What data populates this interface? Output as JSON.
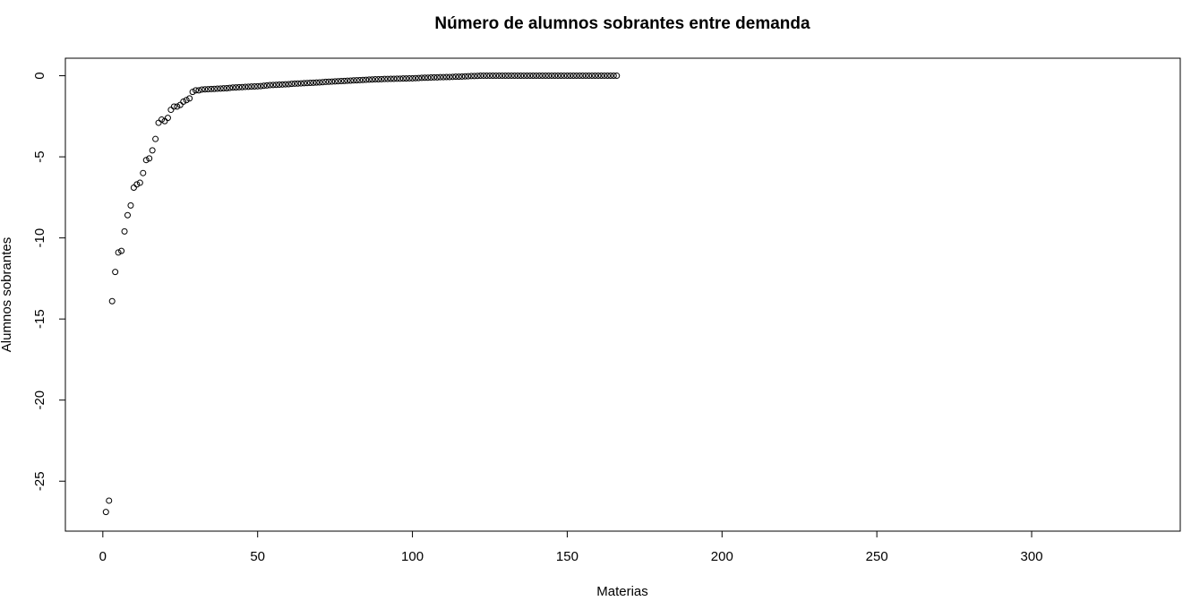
{
  "chart_data": {
    "type": "scatter",
    "title": "Número de alumnos sobrantes entre demanda",
    "x_label": "Materias",
    "y_label": "Alumnos sobrantes",
    "x": [
      1,
      2,
      3,
      4,
      5,
      6,
      7,
      8,
      9,
      10,
      11,
      12,
      13,
      14,
      15,
      16,
      17,
      18,
      19,
      20,
      21,
      22,
      23,
      24,
      25,
      26,
      27,
      28,
      29,
      30,
      31,
      32,
      33,
      34,
      35,
      36,
      37,
      38,
      39,
      40,
      41,
      42,
      43,
      44,
      45,
      46,
      47,
      48,
      49,
      50,
      51,
      52,
      53,
      54,
      55,
      56,
      57,
      58,
      59,
      60,
      61,
      62,
      63,
      64,
      65,
      66,
      67,
      68,
      69,
      70,
      71,
      72,
      73,
      74,
      75,
      76,
      77,
      78,
      79,
      80,
      81,
      82,
      83,
      84,
      85,
      86,
      87,
      88,
      89,
      90,
      91,
      92,
      93,
      94,
      95,
      96,
      97,
      98,
      99,
      100,
      101,
      102,
      103,
      104,
      105,
      106,
      107,
      108,
      109,
      110,
      111,
      112,
      113,
      114,
      115,
      116,
      117,
      118,
      119,
      120,
      121,
      122,
      123,
      124,
      125,
      126,
      127,
      128,
      129,
      130,
      131,
      132,
      133,
      134,
      135,
      136,
      137,
      138,
      139,
      140,
      141,
      142,
      143,
      144,
      145,
      146,
      147,
      148,
      149,
      150,
      151,
      152,
      153,
      154,
      155,
      156,
      157,
      158,
      159,
      160,
      161,
      162,
      163,
      164,
      165,
      166
    ],
    "series": [
      {
        "color": "#000000",
        "values": [
          -26.9,
          -26.2,
          -13.9,
          -12.1,
          -10.9,
          -10.8,
          -9.6,
          -8.6,
          -8.0,
          -6.9,
          -6.7,
          -6.6,
          -6.0,
          -5.2,
          -5.1,
          -4.6,
          -3.9,
          -2.9,
          -2.7,
          -2.8,
          -2.6,
          -2.1,
          -1.9,
          -1.9,
          -1.8,
          -1.6,
          -1.5,
          -1.4,
          -1.0,
          -0.9,
          -0.9,
          -0.85,
          -0.84,
          -0.83,
          -0.82,
          -0.81,
          -0.8,
          -0.79,
          -0.78,
          -0.77,
          -0.75,
          -0.73,
          -0.72,
          -0.71,
          -0.7,
          -0.69,
          -0.68,
          -0.67,
          -0.66,
          -0.65,
          -0.64,
          -0.62,
          -0.6,
          -0.58,
          -0.57,
          -0.56,
          -0.55,
          -0.54,
          -0.53,
          -0.52,
          -0.5,
          -0.49,
          -0.48,
          -0.47,
          -0.46,
          -0.45,
          -0.44,
          -0.43,
          -0.42,
          -0.41,
          -0.4,
          -0.38,
          -0.37,
          -0.36,
          -0.35,
          -0.34,
          -0.33,
          -0.32,
          -0.31,
          -0.3,
          -0.29,
          -0.28,
          -0.27,
          -0.26,
          -0.25,
          -0.24,
          -0.23,
          -0.22,
          -0.22,
          -0.21,
          -0.2,
          -0.2,
          -0.19,
          -0.19,
          -0.18,
          -0.18,
          -0.17,
          -0.17,
          -0.16,
          -0.16,
          -0.15,
          -0.14,
          -0.13,
          -0.12,
          -0.12,
          -0.11,
          -0.1,
          -0.1,
          -0.09,
          -0.09,
          -0.08,
          -0.08,
          -0.07,
          -0.06,
          -0.06,
          -0.05,
          -0.04,
          -0.03,
          -0.02,
          -0.02,
          -0.01,
          0,
          0,
          0,
          0,
          0,
          0,
          0,
          0,
          0,
          0,
          0,
          0,
          0,
          0,
          0,
          0,
          0,
          0,
          0,
          0,
          0,
          0,
          0,
          0,
          0,
          0,
          0,
          0,
          0,
          0,
          0,
          0,
          0,
          0,
          0,
          0,
          0,
          0,
          0,
          0,
          0,
          0,
          0,
          0,
          0
        ]
      }
    ],
    "xlim": [
      -12.1,
      348
    ],
    "ylim": [
      -28.08,
      1.08
    ],
    "xticks": [
      0,
      50,
      100,
      150,
      200,
      250,
      300
    ],
    "yticks": [
      0,
      -5,
      -10,
      -15,
      -20,
      -25
    ],
    "grid": false
  }
}
